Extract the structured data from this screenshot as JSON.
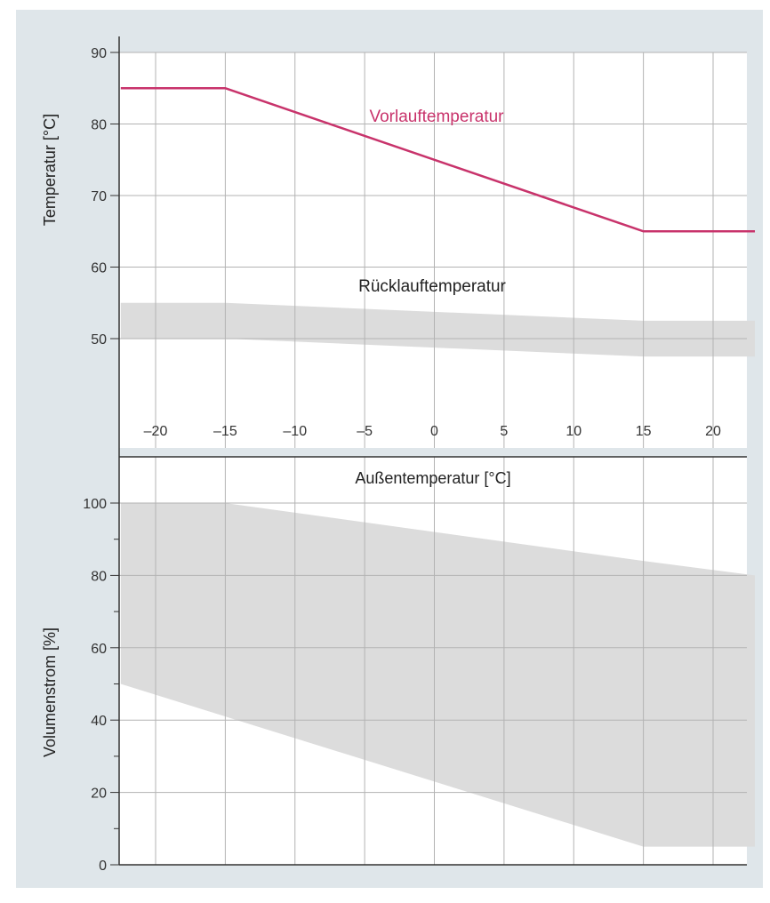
{
  "colors": {
    "frame_background": "#dfe6ea",
    "plot_background": "#ffffff",
    "grid": "#b3b3b3",
    "axis": "#333333",
    "band": "#dcdcdc",
    "vorlauf_line": "#c8336b",
    "text": "#333333"
  },
  "chart_data": [
    {
      "type": "line",
      "ylabel": "Temperatur [°C]",
      "xlabel": "Außentemperatur [°C]",
      "xlim": [
        -22.5,
        23
      ],
      "ylim": [
        36,
        90
      ],
      "x_ticks": [
        -20,
        -15,
        -10,
        -5,
        0,
        5,
        10,
        15,
        20
      ],
      "x_tick_labels": [
        "–20",
        "–15",
        "–10",
        "–5",
        "0",
        "5",
        "10",
        "15",
        "20"
      ],
      "y_ticks": [
        50,
        60,
        70,
        80,
        90
      ],
      "y_tick_labels": [
        "50",
        "60",
        "70",
        "80",
        "90"
      ],
      "grid": true,
      "series": [
        {
          "name": "Vorlauftemperatur",
          "kind": "line",
          "x": [
            -22.5,
            -15,
            15,
            23
          ],
          "y": [
            85,
            85,
            65,
            65
          ]
        },
        {
          "name": "Rücklauftemperatur",
          "kind": "band",
          "x": [
            -22.5,
            -15,
            15,
            23
          ],
          "y_upper": [
            55,
            55,
            52.5,
            52.5
          ],
          "y_lower": [
            50,
            50,
            47.5,
            47.5
          ]
        }
      ]
    },
    {
      "type": "area",
      "ylabel": "Volumenstrom [%]",
      "xlim": [
        -22.5,
        23
      ],
      "ylim": [
        0,
        113
      ],
      "x_ticks": [
        -20,
        -15,
        -10,
        -5,
        0,
        5,
        10,
        15,
        20
      ],
      "y_ticks": [
        0,
        20,
        40,
        60,
        80,
        100
      ],
      "y_tick_labels": [
        "0",
        "20",
        "40",
        "60",
        "80",
        "100"
      ],
      "y_minor_ticks": [
        10,
        30,
        50,
        70,
        90
      ],
      "grid": true,
      "series": [
        {
          "kind": "band",
          "x": [
            -22.5,
            -15,
            15,
            23
          ],
          "y_upper": [
            100,
            100,
            84,
            80
          ],
          "y_lower": [
            50,
            41,
            5,
            5
          ]
        }
      ]
    }
  ]
}
